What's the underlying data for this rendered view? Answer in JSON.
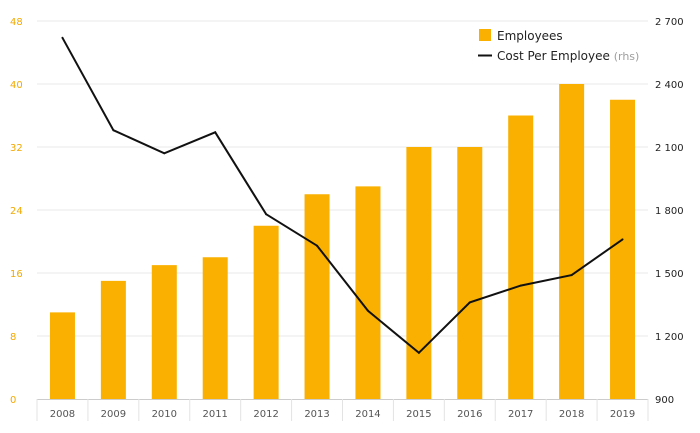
{
  "chart_data": {
    "type": "bar",
    "categories": [
      "2008",
      "2009",
      "2010",
      "2011",
      "2012",
      "2013",
      "2014",
      "2015",
      "2016",
      "2017",
      "2018",
      "2019"
    ],
    "series": [
      {
        "name": "Employees",
        "type": "bar",
        "axis": "left",
        "color": "#f9b000",
        "values": [
          11,
          15,
          17,
          18,
          22,
          26,
          27,
          32,
          32,
          36,
          40,
          38
        ]
      },
      {
        "name": "Cost Per Employee",
        "type": "line",
        "axis": "right",
        "color": "#111111",
        "values": [
          2620,
          2180,
          2070,
          2170,
          1780,
          1630,
          1320,
          1120,
          1360,
          1440,
          1490,
          1660
        ]
      }
    ],
    "left_axis": {
      "ylim": [
        0,
        48
      ],
      "ticks": [
        "0",
        "8",
        "16",
        "24",
        "32",
        "40",
        "48"
      ],
      "color": "#f2a900"
    },
    "right_axis": {
      "ylim": [
        900,
        2700
      ],
      "ticks": [
        "900",
        "1 200",
        "1 500",
        "1 800",
        "2 100",
        "2 400",
        "2 700"
      ]
    },
    "legend": {
      "position": "top-right",
      "items": [
        {
          "label": "Employees",
          "note": "",
          "color": "#f9b000",
          "marker": "square"
        },
        {
          "label": "Cost Per Employee",
          "note": "(rhs)",
          "color": "#111111",
          "marker": "line"
        }
      ]
    },
    "grid": true,
    "title": "",
    "xlabel": "",
    "ylabel": ""
  }
}
